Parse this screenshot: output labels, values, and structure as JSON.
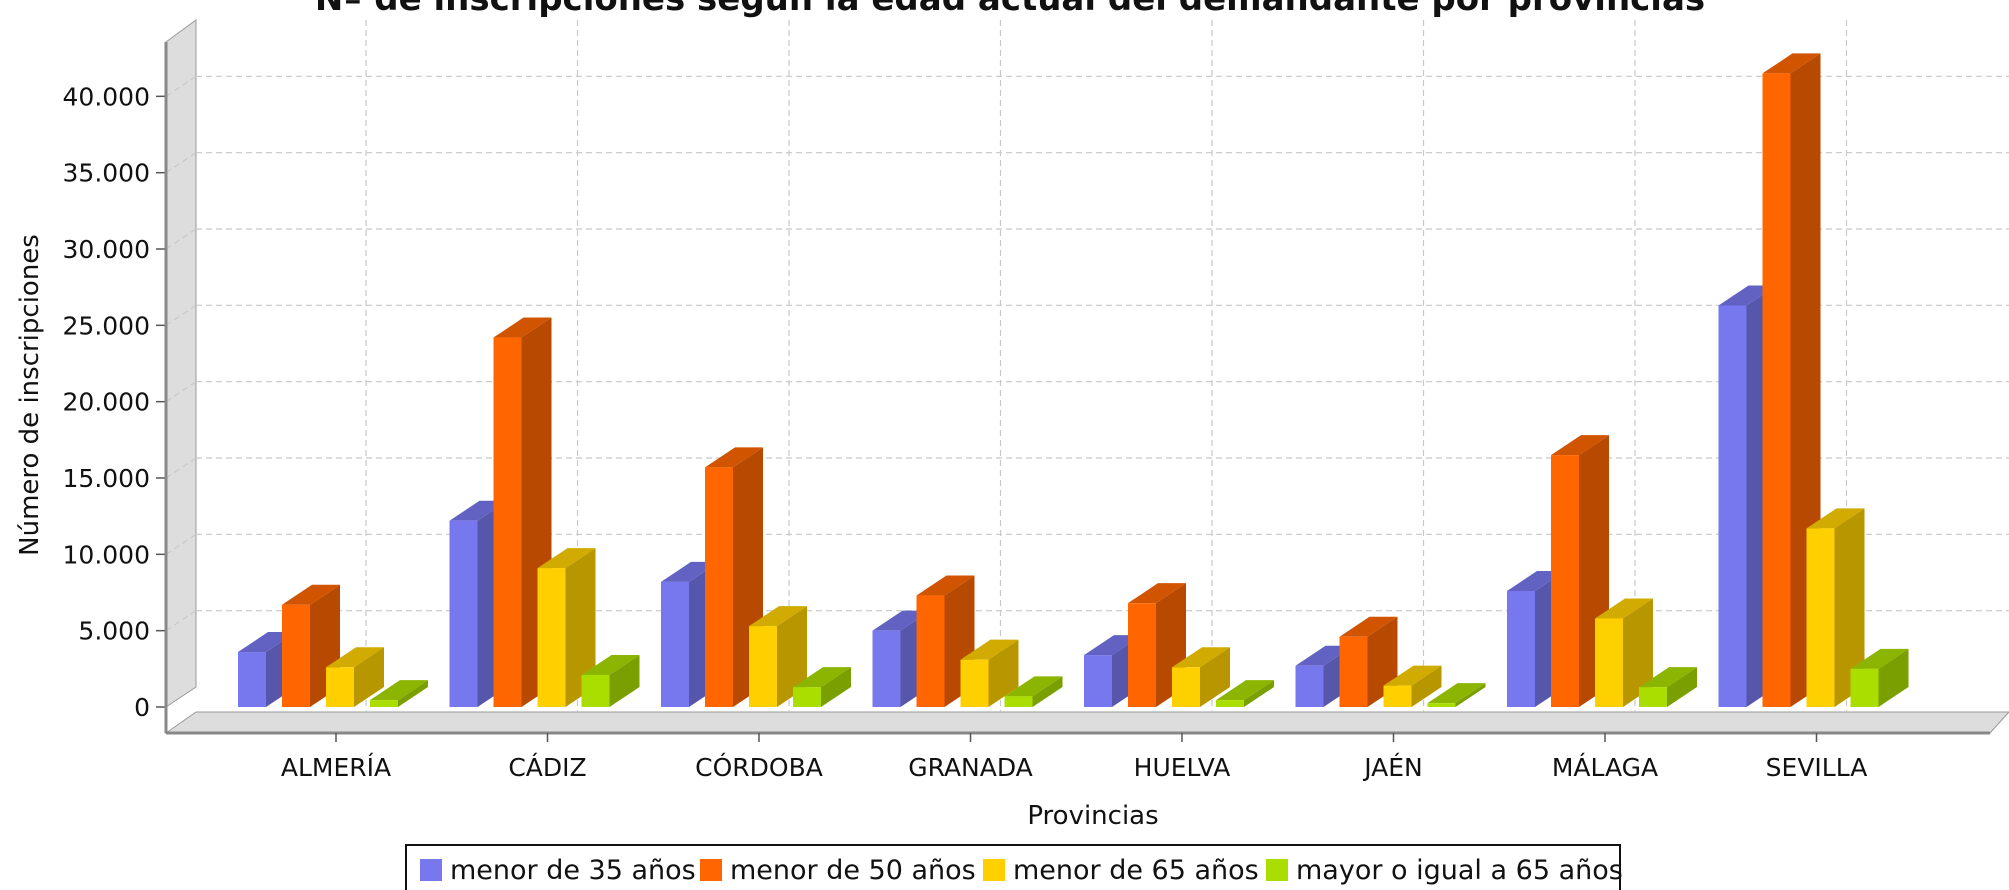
{
  "chart_data": {
    "type": "bar",
    "title": "Nº de inscripciones según la edad actual del demandante por provincias",
    "xlabel": "Provincias",
    "ylabel": "Número de inscripciones",
    "ylim": [
      0,
      45000
    ],
    "yticks": [
      "0",
      "5.000",
      "10.000",
      "15.000",
      "20.000",
      "25.000",
      "30.000",
      "35.000",
      "40.000"
    ],
    "grid": true,
    "legend_position": "bottom",
    "categories": [
      "ALMERÍA",
      "CÁDIZ",
      "CÓRDOBA",
      "GRANADA",
      "HUELVA",
      "JAÉN",
      "MÁLAGA",
      "SEVILLA"
    ],
    "series": [
      {
        "name": "menor de 35 años",
        "color": "#7777ee",
        "values": [
          3600,
          12200,
          8200,
          5000,
          3400,
          2700,
          7600,
          26300
        ]
      },
      {
        "name": "menor de 50 años",
        "color": "#ff6600",
        "values": [
          6700,
          24200,
          15700,
          7300,
          6800,
          4600,
          16500,
          41500
        ]
      },
      {
        "name": "menor de 65 años",
        "color": "#ffd000",
        "values": [
          2600,
          9100,
          5300,
          3100,
          2600,
          1400,
          5800,
          11700
        ]
      },
      {
        "name": "mayor o igual a 65 años",
        "color": "#aadd00",
        "values": [
          450,
          2100,
          1300,
          700,
          450,
          250,
          1300,
          2500
        ]
      }
    ]
  }
}
